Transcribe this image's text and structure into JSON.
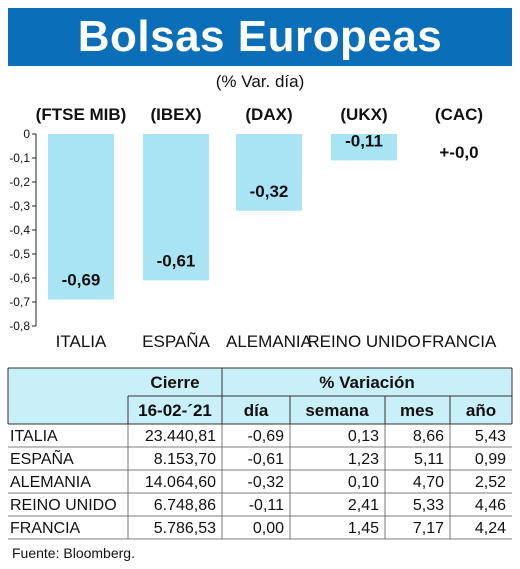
{
  "title": "Bolsas Europeas",
  "subtitle": "(% Var. día)",
  "colors": {
    "banner": "#0a6fb8",
    "bar": "#a9e4f5",
    "table_header": "#c9eff9"
  },
  "chart_data": {
    "type": "bar",
    "categories": [
      "ITALIA",
      "ESPAÑA",
      "ALEMANIA",
      "REINO UNIDO",
      "FRANCIA"
    ],
    "index_labels": [
      "(FTSE MIB)",
      "(IBEX)",
      "(DAX)",
      "(UKX)",
      "(CAC)"
    ],
    "values": [
      -0.69,
      -0.61,
      -0.32,
      -0.11,
      0.0
    ],
    "data_labels": [
      "-0,69",
      "-0,61",
      "-0,32",
      "-0,11",
      "+-0,0"
    ],
    "ylim": [
      -0.8,
      0
    ],
    "yticks": [
      "0",
      "-0,1",
      "-0,2",
      "-0,3",
      "-0,4",
      "-0,5",
      "-0,6",
      "-0,7",
      "-0,8"
    ],
    "grid": false
  },
  "table": {
    "cierre_label": "Cierre",
    "variacion_label": "% Variación",
    "date": "16-02-´21",
    "columns": [
      "día",
      "semana",
      "mes",
      "año"
    ],
    "rows": [
      {
        "country": "ITALIA",
        "cierre": "23.440,81",
        "dia": "-0,69",
        "semana": "0,13",
        "mes": "8,66",
        "ano": "5,43"
      },
      {
        "country": "ESPAÑA",
        "cierre": "8.153,70",
        "dia": "-0,61",
        "semana": "1,23",
        "mes": "5,11",
        "ano": "0,99"
      },
      {
        "country": "ALEMANIA",
        "cierre": "14.064,60",
        "dia": "-0,32",
        "semana": "0,10",
        "mes": "4,70",
        "ano": "2,52"
      },
      {
        "country": "REINO UNIDO",
        "cierre": "6.748,86",
        "dia": "-0,11",
        "semana": "2,41",
        "mes": "5,33",
        "ano": "4,46"
      },
      {
        "country": "FRANCIA",
        "cierre": "5.786,53",
        "dia": "0,00",
        "semana": "1,45",
        "mes": "7,17",
        "ano": "4,24"
      }
    ]
  },
  "source": "Fuente: Bloomberg."
}
